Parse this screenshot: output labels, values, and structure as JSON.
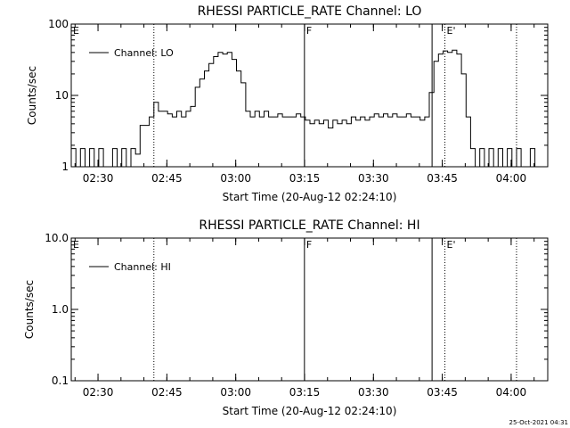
{
  "footer_timestamp": "25-Oct-2021 04:31",
  "chart_data": [
    {
      "type": "line",
      "title": "RHESSI PARTICLE_RATE Channel: LO",
      "xlabel": "Start Time (20-Aug-12 02:24:10)",
      "ylabel": "Counts/sec",
      "yscale": "log",
      "ylim": [
        1,
        100
      ],
      "xlim_minutes": [
        0,
        103.8
      ],
      "x_tick_labels": [
        "02:30",
        "02:45",
        "03:00",
        "03:15",
        "03:30",
        "03:45",
        "04:00"
      ],
      "x_tick_minutes": [
        5.83,
        20.83,
        35.83,
        50.83,
        65.83,
        80.83,
        95.83
      ],
      "y_tick_labels": [
        "1",
        "10",
        "100"
      ],
      "y_tick_values": [
        1,
        10,
        100
      ],
      "legend": [
        "Channel: LO"
      ],
      "markers": [
        {
          "label": "E",
          "minute": 0
        },
        {
          "label": "F",
          "minute": 50.8
        },
        {
          "label": "E'",
          "minute": 81.4
        }
      ],
      "solid_lines_minutes": [
        50.8,
        78.6
      ],
      "dotted_lines_minutes": [
        18.0,
        81.4,
        97.0
      ],
      "series": [
        {
          "name": "Channel: LO",
          "x": [
            0,
            1,
            2,
            3,
            4,
            5,
            6,
            7,
            8,
            9,
            10,
            11,
            12,
            13,
            14,
            15,
            16,
            17,
            18,
            19,
            20,
            21,
            22,
            23,
            24,
            25,
            26,
            27,
            28,
            29,
            30,
            31,
            32,
            33,
            34,
            35,
            36,
            37,
            38,
            39,
            40,
            41,
            42,
            43,
            44,
            45,
            46,
            47,
            48,
            49,
            50,
            51,
            52,
            53,
            54,
            55,
            56,
            57,
            58,
            59,
            60,
            61,
            62,
            63,
            64,
            65,
            66,
            67,
            68,
            69,
            70,
            71,
            72,
            73,
            74,
            75,
            76,
            77,
            78,
            79,
            80,
            81,
            82,
            83,
            84,
            85,
            86,
            87,
            88,
            89,
            90,
            91,
            92,
            93,
            94,
            95,
            96,
            97,
            98,
            99,
            100,
            101,
            102,
            103
          ],
          "values": [
            1.8,
            1,
            1.8,
            1,
            1.8,
            1,
            1.8,
            1,
            1,
            1.8,
            1,
            1.8,
            1,
            1.8,
            1.5,
            3.8,
            3.8,
            5,
            8,
            6,
            6,
            5.5,
            5,
            6,
            5,
            6,
            7,
            13,
            17,
            22,
            28,
            35,
            40,
            38,
            40,
            32,
            22,
            15,
            6,
            5,
            6,
            5,
            6,
            5,
            5,
            5.5,
            5,
            5,
            5,
            5.5,
            5,
            4.5,
            4,
            4.5,
            4,
            4.5,
            3.5,
            4.5,
            4,
            4.5,
            4,
            5,
            4.5,
            5,
            4.5,
            5,
            5.5,
            5,
            5.5,
            5,
            5.5,
            5,
            5,
            5.5,
            5,
            5,
            4.5,
            5,
            11,
            30,
            38,
            42,
            40,
            43,
            38,
            20,
            5,
            1.8,
            1,
            1.8,
            1,
            1.8,
            1,
            1.8,
            1,
            1.8,
            1,
            1.8,
            1,
            1,
            1.8,
            1,
            1,
            1
          ]
        }
      ]
    },
    {
      "type": "line",
      "title": "RHESSI PARTICLE_RATE Channel: HI",
      "xlabel": "Start Time (20-Aug-12 02:24:10)",
      "ylabel": "Counts/sec",
      "yscale": "log",
      "ylim": [
        0.1,
        10
      ],
      "xlim_minutes": [
        0,
        103.8
      ],
      "x_tick_labels": [
        "02:30",
        "02:45",
        "03:00",
        "03:15",
        "03:30",
        "03:45",
        "04:00"
      ],
      "x_tick_minutes": [
        5.83,
        20.83,
        35.83,
        50.83,
        65.83,
        80.83,
        95.83
      ],
      "y_tick_labels": [
        "0.1",
        "1.0",
        "10.0"
      ],
      "y_tick_values": [
        0.1,
        1,
        10
      ],
      "legend": [
        "Channel: HI"
      ],
      "markers": [
        {
          "label": "E",
          "minute": 0
        },
        {
          "label": "F",
          "minute": 50.8
        },
        {
          "label": "E'",
          "minute": 81.4
        }
      ],
      "solid_lines_minutes": [
        50.8,
        78.6
      ],
      "dotted_lines_minutes": [
        18.0,
        81.4,
        97.0
      ],
      "series": [
        {
          "name": "Channel: HI",
          "x": [],
          "values": []
        }
      ]
    }
  ]
}
